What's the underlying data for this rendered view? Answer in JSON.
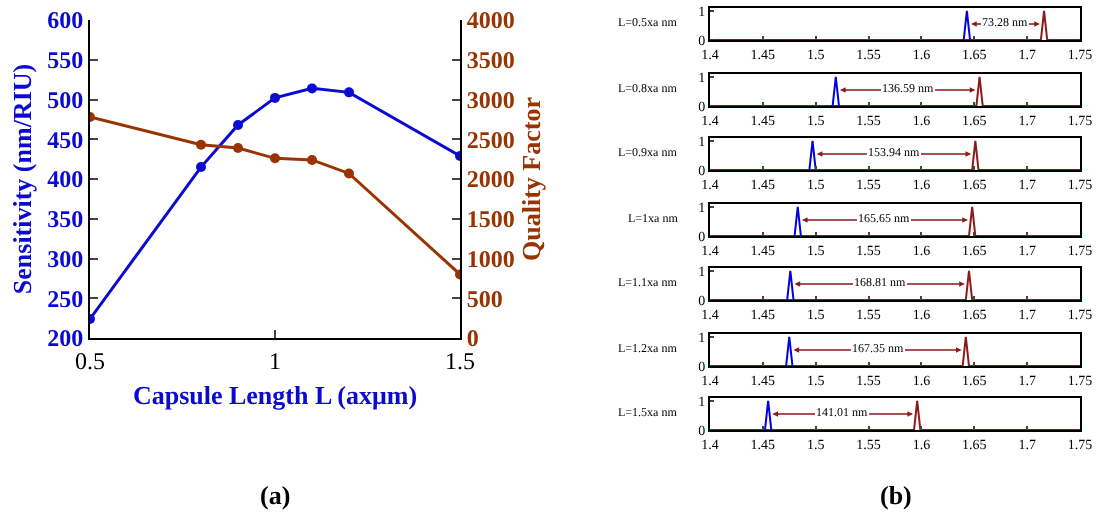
{
  "chart_data": [
    {
      "type": "line",
      "xlabel": "Capsule Length L (axμm)",
      "ylabel": "Sensitivity (nm/RIU)",
      "y2label": "Quality Factor",
      "x": [
        0.5,
        0.8,
        0.9,
        1.0,
        1.1,
        1.2,
        1.5
      ],
      "series": [
        {
          "color": "#0a0ad2",
          "values": [
            224,
            415,
            468,
            502,
            514,
            509,
            429
          ]
        },
        {
          "color": "#993300",
          "axis": "y2",
          "values": [
            2780,
            2430,
            2390,
            2260,
            2240,
            2070,
            800
          ]
        }
      ],
      "xlim": [
        0.5,
        1.5
      ],
      "xticks": [
        0.5,
        1,
        1.5
      ],
      "ylim": [
        200,
        600
      ],
      "yticks": [
        200,
        250,
        300,
        350,
        400,
        450,
        500,
        550,
        600
      ],
      "y2lim": [
        0,
        4000
      ],
      "y2ticks": [
        0,
        500,
        1000,
        1500,
        2000,
        2500,
        3000,
        3500,
        4000
      ],
      "marker": "circle",
      "title": "(a)"
    },
    {
      "type": "line",
      "ylabel": "L=0.5xa nm",
      "series": [
        {
          "color": "#8b1a1a",
          "x": [
            1.4,
            1.713,
            1.716,
            1.719,
            1.75
          ],
          "values": [
            0,
            0,
            1,
            0,
            0
          ]
        },
        {
          "color": "#0000e0",
          "x": [
            1.64,
            1.643,
            1.646
          ],
          "values": [
            0,
            1,
            0
          ]
        }
      ],
      "xlim": [
        1.4,
        1.75
      ],
      "xticks": [
        1.4,
        1.45,
        1.5,
        1.55,
        1.6,
        1.65,
        1.7,
        1.75
      ],
      "ylim": [
        0,
        1.1
      ],
      "yticks": [
        0,
        1
      ],
      "marker": "none",
      "annotations": [
        {
          "text": "73.28 nm",
          "x": 1.643,
          "y": 0.55
        }
      ]
    },
    {
      "type": "line",
      "ylabel": "L=0.8xa nm",
      "series": [
        {
          "color": "#8b1a1a",
          "x": [
            1.4,
            1.652,
            1.655,
            1.658,
            1.75
          ],
          "values": [
            0,
            0,
            1,
            0,
            0
          ]
        },
        {
          "color": "#0000e0",
          "x": [
            1.516,
            1.519,
            1.522
          ],
          "values": [
            0,
            1,
            0
          ]
        }
      ],
      "xlim": [
        1.4,
        1.75
      ],
      "xticks": [
        1.4,
        1.45,
        1.5,
        1.55,
        1.6,
        1.65,
        1.7,
        1.75
      ],
      "ylim": [
        0,
        1.1
      ],
      "yticks": [
        0,
        1
      ],
      "marker": "none",
      "annotations": [
        {
          "text": "136.59 nm",
          "x": 1.519,
          "y": 0.55
        }
      ]
    },
    {
      "type": "line",
      "ylabel": "L=0.9xa nm",
      "series": [
        {
          "color": "#8b1a1a",
          "x": [
            1.4,
            1.648,
            1.651,
            1.654,
            1.75
          ],
          "values": [
            0,
            0,
            1,
            0,
            0
          ]
        },
        {
          "color": "#0000e0",
          "x": [
            1.494,
            1.497,
            1.5
          ],
          "values": [
            0,
            1,
            0
          ]
        }
      ],
      "xlim": [
        1.4,
        1.75
      ],
      "xticks": [
        1.4,
        1.45,
        1.5,
        1.55,
        1.6,
        1.65,
        1.7,
        1.75
      ],
      "ylim": [
        0,
        1.1
      ],
      "yticks": [
        0,
        1
      ],
      "marker": "none",
      "annotations": [
        {
          "text": "153.94 nm",
          "x": 1.497,
          "y": 0.55
        }
      ]
    },
    {
      "type": "line",
      "ylabel": "L=1xa nm",
      "series": [
        {
          "color": "#8b1a1a",
          "x": [
            1.4,
            1.645,
            1.648,
            1.651,
            1.75
          ],
          "values": [
            0,
            0,
            1,
            0,
            0
          ]
        },
        {
          "color": "#0000e0",
          "x": [
            1.48,
            1.483,
            1.486
          ],
          "values": [
            0,
            1,
            0
          ]
        }
      ],
      "xlim": [
        1.4,
        1.75
      ],
      "xticks": [
        1.4,
        1.45,
        1.5,
        1.55,
        1.6,
        1.65,
        1.7,
        1.75
      ],
      "ylim": [
        0,
        1.1
      ],
      "yticks": [
        0,
        1
      ],
      "marker": "none",
      "annotations": [
        {
          "text": "165.65 nm",
          "x": 1.483,
          "y": 0.55
        }
      ]
    },
    {
      "type": "line",
      "ylabel": "L=1.1xa nm",
      "series": [
        {
          "color": "#8b1a1a",
          "x": [
            1.4,
            1.642,
            1.645,
            1.648,
            1.75
          ],
          "values": [
            0,
            0,
            1,
            0,
            0
          ]
        },
        {
          "color": "#0000e0",
          "x": [
            1.473,
            1.476,
            1.479
          ],
          "values": [
            0,
            1,
            0
          ]
        }
      ],
      "xlim": [
        1.4,
        1.75
      ],
      "xticks": [
        1.4,
        1.45,
        1.5,
        1.55,
        1.6,
        1.65,
        1.7,
        1.75
      ],
      "ylim": [
        0,
        1.1
      ],
      "yticks": [
        0,
        1
      ],
      "marker": "none",
      "annotations": [
        {
          "text": "168.81 nm",
          "x": 1.476,
          "y": 0.55
        }
      ]
    },
    {
      "type": "line",
      "ylabel": "L=1.2xa nm",
      "series": [
        {
          "color": "#8b1a1a",
          "x": [
            1.4,
            1.639,
            1.642,
            1.645,
            1.75
          ],
          "values": [
            0,
            0,
            1,
            0,
            0
          ]
        },
        {
          "color": "#0000e0",
          "x": [
            1.472,
            1.475,
            1.478
          ],
          "values": [
            0,
            1,
            0
          ]
        }
      ],
      "xlim": [
        1.4,
        1.75
      ],
      "xticks": [
        1.4,
        1.45,
        1.5,
        1.55,
        1.6,
        1.65,
        1.7,
        1.75
      ],
      "ylim": [
        0,
        1.1
      ],
      "yticks": [
        0,
        1
      ],
      "marker": "none",
      "annotations": [
        {
          "text": "167.35 nm",
          "x": 1.475,
          "y": 0.55
        }
      ]
    },
    {
      "type": "line",
      "ylabel": "L=1.5xa nm",
      "series": [
        {
          "color": "#8b1a1a",
          "x": [
            1.4,
            1.593,
            1.596,
            1.599,
            1.75
          ],
          "values": [
            0,
            0,
            1,
            0,
            0
          ]
        },
        {
          "color": "#0000e0",
          "x": [
            1.452,
            1.455,
            1.458
          ],
          "values": [
            0,
            1,
            0
          ]
        }
      ],
      "xlim": [
        1.4,
        1.75
      ],
      "xticks": [
        1.4,
        1.45,
        1.5,
        1.55,
        1.6,
        1.65,
        1.7,
        1.75
      ],
      "ylim": [
        0,
        1.1
      ],
      "yticks": [
        0,
        1
      ],
      "marker": "none",
      "annotations": [
        {
          "text": "141.01 nm",
          "x": 1.455,
          "y": 0.55
        }
      ],
      "title": "(b)"
    }
  ]
}
